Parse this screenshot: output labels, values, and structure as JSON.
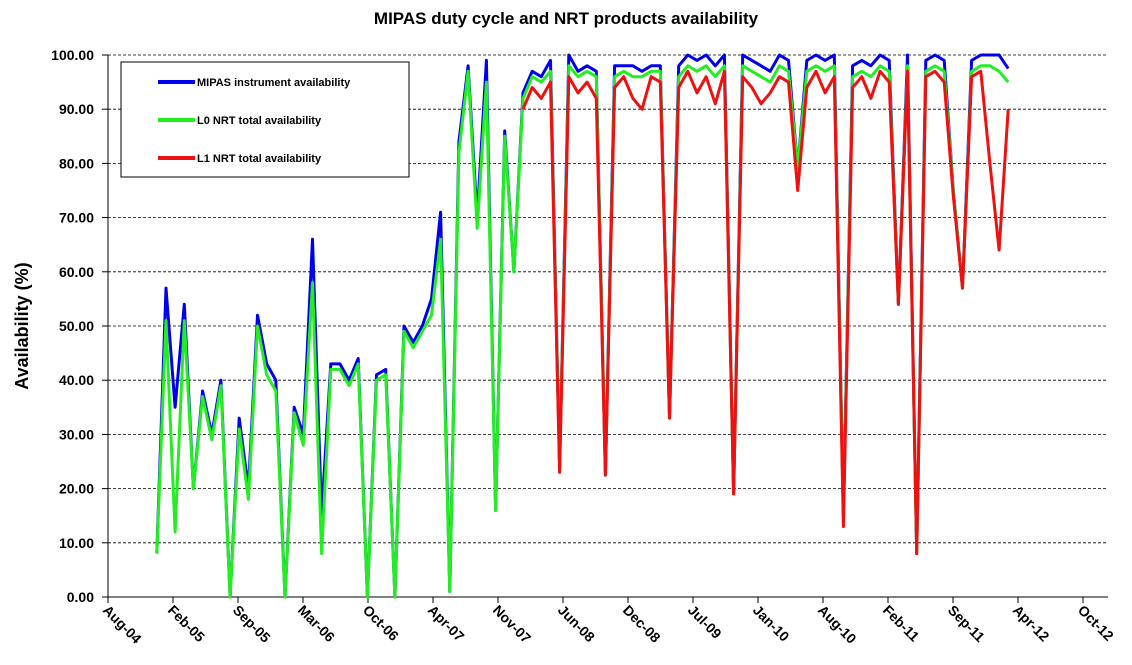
{
  "chart_data": {
    "type": "line",
    "title": "MIPAS duty cycle and NRT products availability",
    "y_label": "Availability (%)",
    "x": [
      160,
      190,
      220,
      250,
      280,
      310,
      340,
      370,
      400,
      430,
      460,
      490,
      520,
      550,
      580,
      610,
      640,
      670,
      700,
      730,
      760,
      790,
      820,
      850,
      880,
      910,
      940,
      970,
      1000,
      1030,
      1060,
      1090,
      1120,
      1150,
      1180,
      1210,
      1240,
      1270,
      1300,
      1330,
      1360,
      1390,
      1420,
      1450,
      1480,
      1510,
      1540,
      1570,
      1600,
      1630,
      1660,
      1690,
      1720,
      1750,
      1780,
      1810,
      1840,
      1870,
      1900,
      1930,
      1960,
      1990,
      2020,
      2050,
      2080,
      2110,
      2140,
      2170,
      2200,
      2230,
      2260,
      2290,
      2320,
      2350,
      2380,
      2410,
      2440,
      2470,
      2500,
      2530,
      2560,
      2590,
      2620,
      2650,
      2680,
      2710,
      2740,
      2770,
      2800,
      2830,
      2860,
      2890,
      2920,
      2950
    ],
    "series": [
      {
        "name": "MIPAS instrument availability",
        "color": "#0000ee",
        "values": [
          8,
          57,
          35,
          54,
          20,
          38,
          30,
          40,
          0,
          33,
          20,
          52,
          43,
          40,
          0,
          35,
          30,
          66,
          15,
          43,
          43,
          40,
          44,
          0,
          41,
          42,
          0,
          50,
          47,
          50,
          55,
          71,
          1,
          84,
          98,
          70,
          99,
          16,
          86,
          60,
          93,
          97,
          96,
          99,
          24,
          100,
          97,
          98,
          97,
          22.5,
          98,
          98,
          98,
          97,
          98,
          98,
          33,
          98,
          100,
          99,
          100,
          98,
          100,
          19,
          100,
          99,
          98,
          97,
          100,
          99,
          79,
          99,
          100,
          99,
          100,
          15,
          98,
          99,
          98,
          100,
          99,
          54,
          100,
          8,
          99,
          100,
          99,
          75,
          57,
          99,
          100,
          100,
          100,
          97.5
        ]
      },
      {
        "name": "L0 NRT total availability",
        "color": "#22ee22",
        "values": [
          8,
          51,
          12,
          51,
          20,
          37,
          29,
          39,
          0,
          31,
          18,
          50,
          41,
          38,
          0,
          34,
          28,
          58,
          8,
          42,
          42,
          39,
          43,
          0,
          40,
          41,
          0,
          49,
          46,
          49,
          52,
          66,
          1,
          82,
          97,
          68,
          95,
          16,
          85,
          60,
          92,
          96,
          95,
          97,
          24,
          98,
          96,
          97,
          96,
          22.5,
          96,
          97,
          96,
          96,
          97,
          97,
          33,
          96,
          98,
          97,
          98,
          96,
          98,
          19,
          98,
          97,
          96,
          95,
          98,
          97,
          79,
          97,
          98,
          97,
          98,
          15,
          96,
          97,
          96,
          98,
          97,
          54,
          98,
          8,
          97,
          98,
          97,
          75,
          57,
          97,
          98,
          98,
          97,
          95
        ]
      },
      {
        "name": "L1 NRT total availability",
        "color": "#ee1111",
        "values": [
          null,
          null,
          null,
          null,
          null,
          null,
          null,
          null,
          null,
          null,
          null,
          null,
          null,
          null,
          null,
          null,
          null,
          null,
          null,
          null,
          null,
          null,
          null,
          null,
          null,
          null,
          null,
          null,
          null,
          null,
          null,
          null,
          null,
          null,
          null,
          null,
          null,
          null,
          null,
          null,
          90,
          94,
          92,
          95,
          23,
          96,
          93,
          95,
          92,
          22.5,
          94,
          96,
          92,
          90,
          96,
          95,
          33,
          94,
          97,
          93,
          96,
          91,
          97,
          19,
          96,
          94,
          91,
          93,
          96,
          95,
          75,
          94,
          97,
          93,
          96,
          13,
          94,
          96,
          92,
          97,
          95,
          54,
          97,
          8,
          96,
          97,
          95,
          74,
          57,
          96,
          97,
          80,
          64,
          90
        ]
      }
    ],
    "xlim": [
      0,
      3195
    ],
    "xticks": [
      {
        "value": 0,
        "label": "Aug-04"
      },
      {
        "value": 213,
        "label": "Feb-05"
      },
      {
        "value": 426,
        "label": "Sep-05"
      },
      {
        "value": 639,
        "label": "Mar-06"
      },
      {
        "value": 852,
        "label": "Oct-06"
      },
      {
        "value": 1065,
        "label": "Apr-07"
      },
      {
        "value": 1278,
        "label": "Nov-07"
      },
      {
        "value": 1491,
        "label": "Jun-08"
      },
      {
        "value": 1704,
        "label": "Dec-08"
      },
      {
        "value": 1917,
        "label": "Jul-09"
      },
      {
        "value": 2130,
        "label": "Jan-10"
      },
      {
        "value": 2343,
        "label": "Aug-10"
      },
      {
        "value": 2556,
        "label": "Feb-11"
      },
      {
        "value": 2769,
        "label": "Sep-11"
      },
      {
        "value": 2982,
        "label": "Apr-12"
      },
      {
        "value": 3195,
        "label": "Oct-12"
      }
    ],
    "ylim": [
      0,
      100
    ],
    "yticks": [
      {
        "value": 0,
        "label": "0.00"
      },
      {
        "value": 10,
        "label": "10.00"
      },
      {
        "value": 20,
        "label": "20.00"
      },
      {
        "value": 30,
        "label": "30.00"
      },
      {
        "value": 40,
        "label": "40.00"
      },
      {
        "value": 50,
        "label": "50.00"
      },
      {
        "value": 60,
        "label": "60.00"
      },
      {
        "value": 70,
        "label": "70.00"
      },
      {
        "value": 80,
        "label": "80.00"
      },
      {
        "value": 90,
        "label": "90.00"
      },
      {
        "value": 100,
        "label": "100.00"
      }
    ],
    "grid": true,
    "legend": "upper left"
  }
}
